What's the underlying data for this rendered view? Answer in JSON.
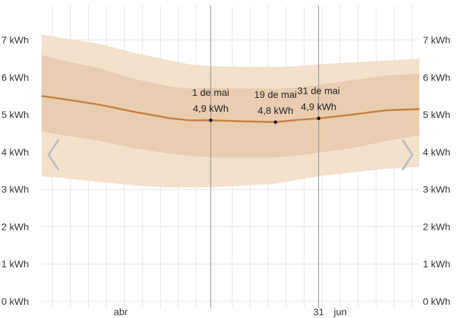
{
  "chart_data": {
    "type": "area",
    "title": "",
    "xlabel": "",
    "ylabel": "",
    "ylim": [
      0,
      7.7
    ],
    "grid": true,
    "y_ticks": [
      "0 kWh",
      "1 kWh",
      "2 kWh",
      "3 kWh",
      "4 kWh",
      "5 kWh",
      "6 kWh",
      "7 kWh"
    ],
    "x_ticks": [
      {
        "day": 96,
        "label": "abr"
      },
      {
        "day": 151,
        "label": "31"
      },
      {
        "day": 157,
        "label": "jun"
      }
    ],
    "x_range_day_of_year": [
      74,
      179
    ],
    "series": [
      {
        "days": [
          74,
          80,
          90,
          100,
          110,
          115,
          121,
          130,
          139,
          145,
          151,
          160,
          170,
          179
        ],
        "mean": [
          5.5,
          5.42,
          5.27,
          5.07,
          4.9,
          4.85,
          4.85,
          4.82,
          4.8,
          4.86,
          4.9,
          5.0,
          5.12,
          5.15
        ],
        "p25": [
          4.55,
          4.45,
          4.3,
          4.1,
          3.95,
          3.9,
          3.85,
          3.85,
          3.85,
          3.9,
          3.98,
          4.1,
          4.3,
          4.45
        ],
        "p75": [
          6.6,
          6.45,
          6.25,
          5.95,
          5.75,
          5.7,
          5.72,
          5.7,
          5.7,
          5.72,
          5.8,
          5.92,
          6.05,
          6.1
        ],
        "p10": [
          3.35,
          3.3,
          3.2,
          3.1,
          3.05,
          3.05,
          3.05,
          3.1,
          3.15,
          3.25,
          3.35,
          3.45,
          3.55,
          3.6
        ],
        "p90": [
          7.15,
          7.05,
          6.9,
          6.65,
          6.45,
          6.35,
          6.3,
          6.28,
          6.28,
          6.3,
          6.35,
          6.4,
          6.45,
          6.5
        ]
      }
    ],
    "annotations": [
      {
        "day": 121,
        "value": 4.85,
        "date": "1 de mai",
        "value_label": "4,9 kWh"
      },
      {
        "day": 139,
        "value": 4.8,
        "date": "19 de mai",
        "value_label": "4,8 kWh"
      },
      {
        "day": 151,
        "value": 4.9,
        "date": "31 de mai",
        "value_label": "4,9 kWh"
      }
    ],
    "colors": {
      "band_outer": "#f3e1cc",
      "band_inner": "#e9cdb0",
      "line": "#c87d3c",
      "grid": "#e6e6e6",
      "marker_line": "#8a8a8a",
      "arrow": "#bfbfbf"
    }
  }
}
